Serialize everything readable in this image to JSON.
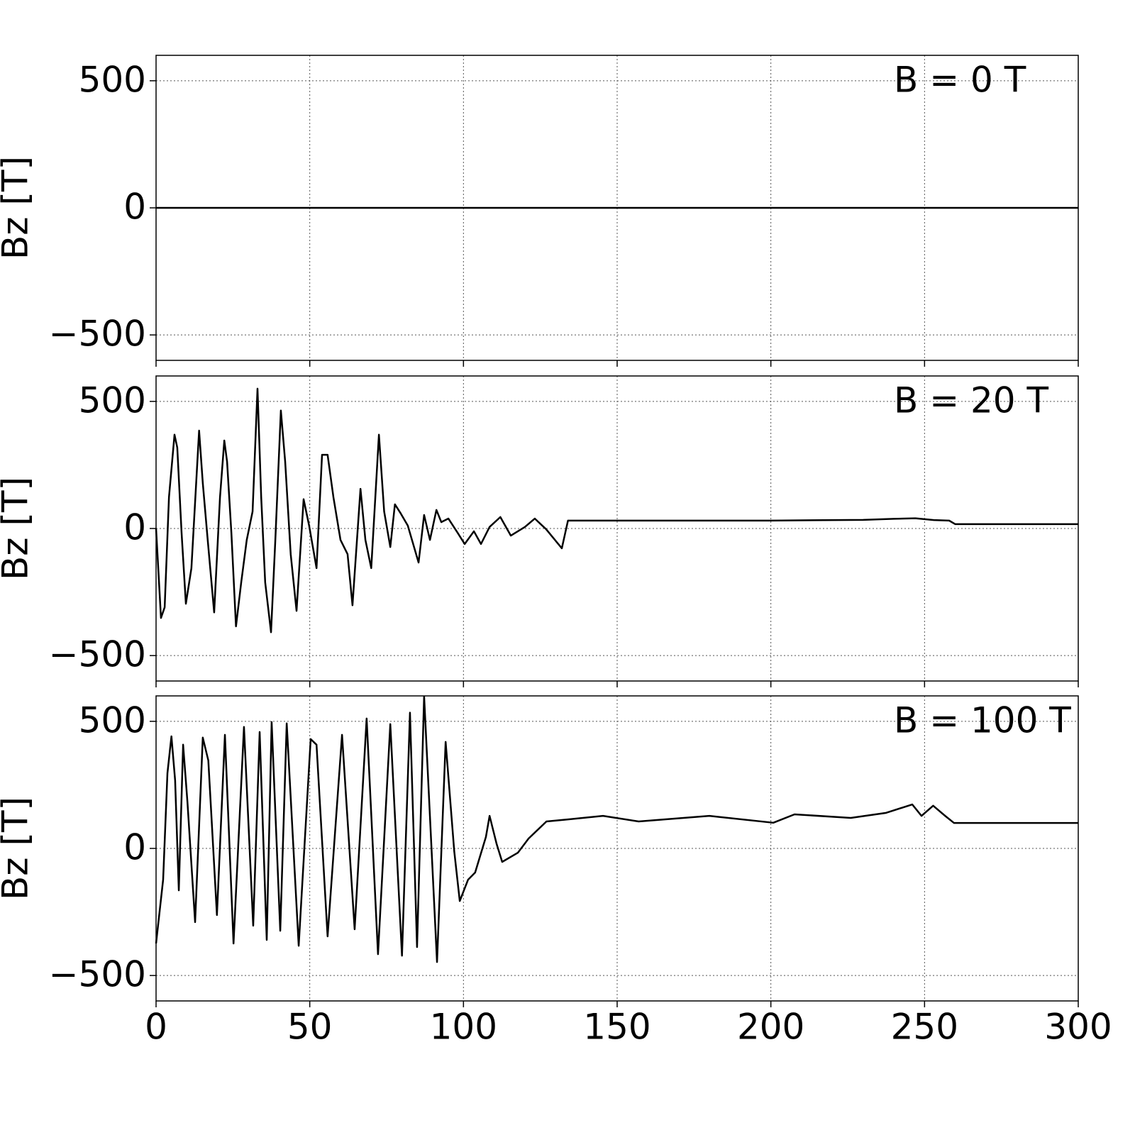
{
  "chart_data": [
    {
      "type": "line",
      "annotation": "B = 0 T",
      "ylabel": "Bz [T]",
      "x": [
        0,
        300
      ],
      "series": [
        {
          "color": "#000000",
          "values": [
            0,
            0
          ]
        }
      ],
      "xlim": [
        0,
        300
      ],
      "xticks": [
        0,
        50,
        100,
        150,
        200,
        250,
        300
      ],
      "xticklabels": false,
      "ylim": [
        -600,
        600
      ],
      "yticks": [
        {
          "value": -500,
          "label": "−500"
        },
        0,
        500
      ],
      "grid": true
    },
    {
      "type": "line",
      "annotation": "B = 20 T",
      "ylabel": "Bz [T]",
      "x": [
        0,
        1.6,
        2.8,
        4.2,
        6,
        6.9,
        8.3,
        9.7,
        11.5,
        14,
        15.2,
        16.8,
        18.9,
        20.8,
        22.2,
        23.1,
        24.5,
        26,
        27.7,
        29.5,
        31.4,
        33,
        34.2,
        35.5,
        37.4,
        38.8,
        40.6,
        42,
        43.8,
        45.7,
        48,
        49.8,
        52.2,
        54,
        55.8,
        57.7,
        60,
        62.3,
        63.9,
        66.5,
        68.1,
        70,
        72.5,
        74.2,
        76.2,
        77.7,
        79.6,
        81.9,
        85.4,
        87.2,
        89.1,
        91.2,
        92.8,
        95.1,
        98.1,
        100.4,
        103.4,
        105.7,
        108.5,
        112,
        115.4,
        120,
        123.2,
        126.9,
        132,
        134,
        200,
        230,
        240,
        247,
        253,
        258,
        260,
        300
      ],
      "series": [
        {
          "color": "#000000",
          "values": [
            0,
            -352,
            -310,
            123,
            369,
            318,
            -17,
            -296,
            -156,
            385,
            179,
            -45,
            -330,
            123,
            346,
            263,
            -17,
            -385,
            -212,
            -45,
            67,
            550,
            123,
            -212,
            -408,
            -45,
            464,
            263,
            -101,
            -324,
            115,
            11,
            -156,
            290,
            290,
            123,
            -45,
            -101,
            -302,
            156,
            -45,
            -156,
            369,
            67,
            -73,
            95,
            59,
            11,
            -134,
            53,
            -45,
            73,
            25,
            39,
            -17,
            -61,
            -11,
            -61,
            6,
            45,
            -28,
            6,
            39,
            -3,
            -78,
            31,
            31,
            34,
            38,
            40,
            33,
            31,
            17,
            17
          ]
        }
      ],
      "xlim": [
        0,
        300
      ],
      "xticks": [
        0,
        50,
        100,
        150,
        200,
        250,
        300
      ],
      "xticklabels": false,
      "ylim": [
        -600,
        600
      ],
      "yticks": [
        {
          "value": -500,
          "label": "−500"
        },
        0,
        500
      ],
      "grid": true
    },
    {
      "type": "line",
      "annotation": "B = 100 T",
      "ylabel": "Bz [T]",
      "x": [
        0,
        2.3,
        3.7,
        5,
        6.2,
        7.4,
        8.8,
        10.2,
        12.7,
        15.2,
        17,
        19.8,
        22.4,
        25.2,
        28.6,
        31.6,
        33.7,
        36,
        37.6,
        40.4,
        42.5,
        46.4,
        50.3,
        52.2,
        55.8,
        60.5,
        64.6,
        68.5,
        72.2,
        76.2,
        80,
        82.6,
        84.9,
        87.2,
        91.4,
        94.2,
        97,
        98.8,
        101.5,
        103.8,
        107.3,
        108.5,
        110.8,
        112.6,
        117.7,
        121.2,
        127,
        134,
        145.4,
        157,
        180,
        200.8,
        207.7,
        226,
        237.5,
        246,
        249,
        252.8,
        256.7,
        259.6,
        300
      ],
      "series": [
        {
          "color": "#000000",
          "values": [
            -374,
            -123,
            296,
            441,
            268,
            -165,
            408,
            184,
            -290,
            436,
            346,
            -262,
            447,
            -374,
            478,
            -304,
            458,
            -360,
            497,
            -324,
            492,
            -383,
            430,
            408,
            -346,
            447,
            -318,
            511,
            -416,
            489,
            -422,
            534,
            -388,
            598,
            -447,
            419,
            -11,
            -207,
            -123,
            -95,
            45,
            128,
            17,
            -53,
            -17,
            39,
            106,
            114,
            128,
            106,
            128,
            101,
            134,
            120,
            140,
            173,
            128,
            168,
            128,
            100,
            100
          ]
        }
      ],
      "xlim": [
        0,
        300
      ],
      "xticks": [
        0,
        50,
        100,
        150,
        200,
        250,
        300
      ],
      "xticklabels": true,
      "ylim": [
        -600,
        600
      ],
      "yticks": [
        {
          "value": -500,
          "label": "−500"
        },
        0,
        500
      ],
      "grid": true
    }
  ]
}
